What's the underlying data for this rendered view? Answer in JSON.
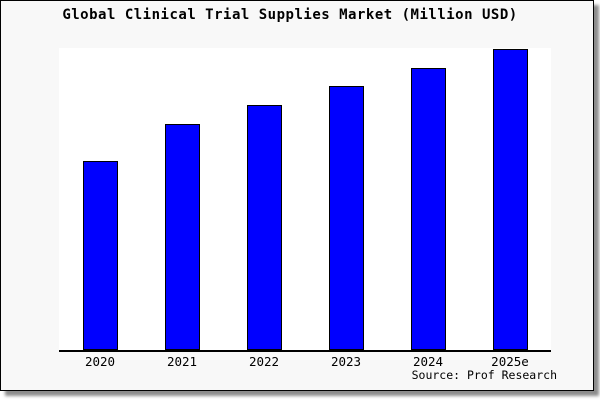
{
  "page": {
    "background": "#ffffff"
  },
  "frame": {
    "background": "#f8f8f8",
    "border_color": "#000000",
    "shadow_color": "#737373"
  },
  "chart_data": {
    "type": "bar",
    "title": "Global Clinical Trial Supplies Market (Million USD)",
    "categories": [
      "2020",
      "2021",
      "2022",
      "2023",
      "2024",
      "2025e"
    ],
    "values": [
      189,
      226,
      245,
      264,
      282,
      301
    ],
    "ylim": [
      0,
      302
    ],
    "xlabel": "",
    "ylabel": "",
    "grid": false,
    "legend": false,
    "y_axis_tick_labels_visible": false,
    "bar_color": "#0000ff",
    "bar_border_color": "#000000",
    "axis_line_color": "#000000",
    "plot_background": "#ffffff"
  },
  "footer": {
    "source_label": "Source: Prof Research"
  }
}
